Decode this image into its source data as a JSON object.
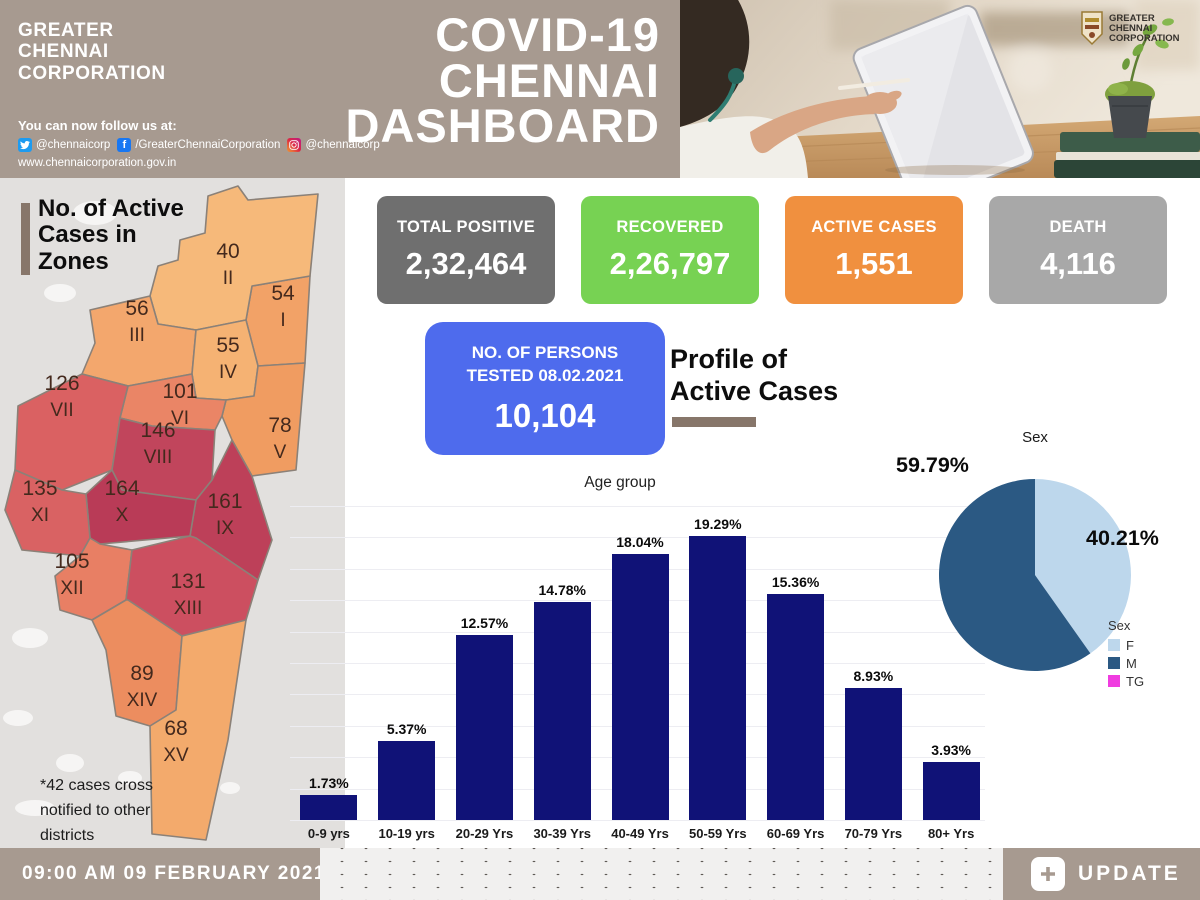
{
  "theme": {
    "taupe": "#a79a90",
    "accent": "#87766a",
    "map_bg": "#e2e0de"
  },
  "header": {
    "org_name": [
      "GREATER",
      "CHENNAI",
      "CORPORATION"
    ],
    "follow_label": "You can now follow us at:",
    "social": [
      {
        "icon": "twitter",
        "handle": "@chennaicorp"
      },
      {
        "icon": "facebook",
        "handle": "/GreaterChennaiCorporation"
      },
      {
        "icon": "instagram",
        "handle": "@chennaicorp"
      }
    ],
    "website": "www.chennaicorporation.gov.in",
    "title": [
      "COVID-19",
      "CHENNAI",
      "DASHBOARD"
    ],
    "logo": [
      "GREATER",
      "CHENNAI",
      "CORPORATION"
    ]
  },
  "stats": [
    {
      "label": "TOTAL POSITIVE",
      "value": "2,32,464",
      "color": "#6f6f6f"
    },
    {
      "label": "RECOVERED",
      "value": "2,26,797",
      "color": "#77d253"
    },
    {
      "label": "ACTIVE CASES",
      "value": "1,551",
      "color": "#f0903f"
    },
    {
      "label": "DEATH",
      "value": "4,116",
      "color": "#a8a8a8"
    }
  ],
  "tested_card": {
    "label": [
      "NO. OF PERSONS",
      "TESTED 08.02.2021"
    ],
    "value": "10,104",
    "color": "#4e6bed"
  },
  "profile_heading": [
    "Profile of",
    "Active Cases"
  ],
  "map": {
    "title": [
      "No. of Active",
      "Cases in",
      "Zones"
    ],
    "footnote": [
      "*42 cases cross",
      "notified to other",
      "districts"
    ],
    "zones": [
      {
        "id": "I",
        "cases": "54",
        "color": "#f2a267"
      },
      {
        "id": "II",
        "cases": "40",
        "color": "#f6b97a"
      },
      {
        "id": "III",
        "cases": "56",
        "color": "#f3a76d"
      },
      {
        "id": "IV",
        "cases": "55",
        "color": "#f5b273"
      },
      {
        "id": "V",
        "cases": "78",
        "color": "#f09c61"
      },
      {
        "id": "VI",
        "cases": "101",
        "color": "#ea8566"
      },
      {
        "id": "VII",
        "cases": "126",
        "color": "#da6162"
      },
      {
        "id": "VIII",
        "cases": "146",
        "color": "#c1455c"
      },
      {
        "id": "IX",
        "cases": "161",
        "color": "#bd4059"
      },
      {
        "id": "X",
        "cases": "164",
        "color": "#b93b57"
      },
      {
        "id": "XI",
        "cases": "135",
        "color": "#d96263"
      },
      {
        "id": "XII",
        "cases": "105",
        "color": "#e87f64"
      },
      {
        "id": "XIII",
        "cases": "131",
        "color": "#cc4f60"
      },
      {
        "id": "XIV",
        "cases": "89",
        "color": "#ec8d5f"
      },
      {
        "id": "XV",
        "cases": "68",
        "color": "#f3aa6c"
      }
    ]
  },
  "chart_data": [
    {
      "type": "bar",
      "title": "Age group",
      "categories": [
        "0-9 yrs",
        "10-19 yrs",
        "20-29 Yrs",
        "30-39 Yrs",
        "40-49 Yrs",
        "50-59 Yrs",
        "60-69 Yrs",
        "70-79 Yrs",
        "80+ Yrs"
      ],
      "values": [
        1.73,
        5.37,
        12.57,
        14.78,
        18.04,
        19.29,
        15.36,
        8.93,
        3.93
      ],
      "value_labels": [
        "1.73%",
        "5.37%",
        "12.57%",
        "14.78%",
        "18.04%",
        "19.29%",
        "15.36%",
        "8.93%",
        "3.93%"
      ],
      "bar_color": "#101277",
      "xlabel": "",
      "ylabel": "",
      "ylim": [
        0,
        21.3
      ],
      "grid": true
    },
    {
      "type": "pie",
      "title": "Sex",
      "legend_title": "Sex",
      "legend_position": "right",
      "slices": [
        {
          "label": "F",
          "value": 40.21,
          "display": "40.21%",
          "color": "#bdd7ec"
        },
        {
          "label": "M",
          "value": 59.79,
          "display": "59.79%",
          "color": "#2b5983"
        },
        {
          "label": "TG",
          "value": 0,
          "display": "",
          "color": "#f03ce0"
        }
      ]
    }
  ],
  "footer": {
    "timestamp": "09:00 AM 09 FEBRUARY 2021",
    "update_label": "UPDATE"
  }
}
